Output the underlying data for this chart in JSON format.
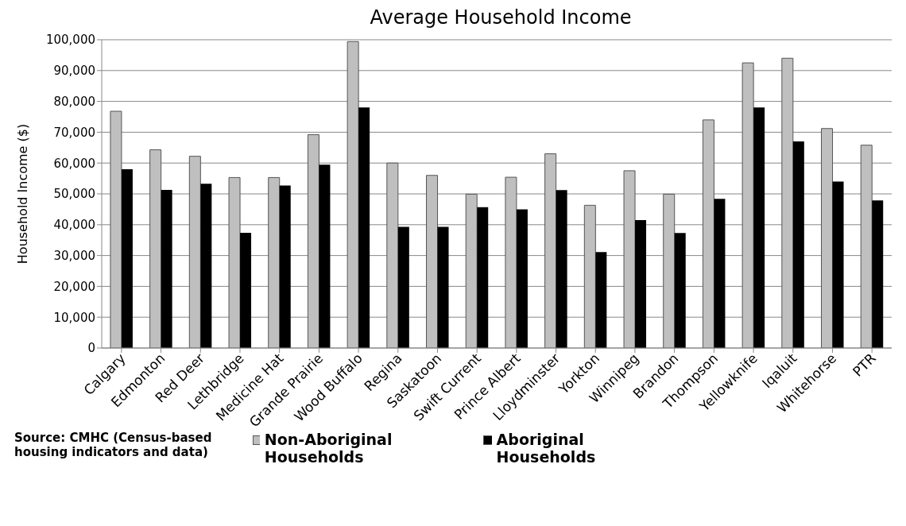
{
  "chart_data": {
    "type": "bar",
    "title": "Average Household Income",
    "ylabel": "Household Income ($)",
    "categories": [
      "Calgary",
      "Edmonton",
      "Red Deer",
      "Lethbridge",
      "Medicine Hat",
      "Grande Prairie",
      "Wood Buffalo",
      "Regina",
      "Saskatoon",
      "Swift Current",
      "Prince Albert",
      "Lloydminster",
      "Yorkton",
      "Winnipeg",
      "Brandon",
      "Thompson",
      "Yellowknife",
      "Iqaluit",
      "Whitehorse",
      "PTR"
    ],
    "series": [
      {
        "name": "Non-Aboriginal Households",
        "color": "#bfbfbf",
        "values": [
          76800,
          64300,
          62200,
          55300,
          55300,
          69200,
          99400,
          60000,
          56000,
          49900,
          55400,
          63000,
          46300,
          57500,
          49900,
          74000,
          92500,
          94000,
          71200,
          65800
        ]
      },
      {
        "name": "Aboriginal Households",
        "color": "#000000",
        "values": [
          58000,
          51300,
          53300,
          37400,
          52700,
          59500,
          78000,
          39300,
          39300,
          45700,
          45000,
          51200,
          31100,
          41500,
          37300,
          48400,
          78000,
          67000,
          54000,
          47900
        ]
      }
    ],
    "ylim": [
      0,
      100000
    ],
    "yticks": [
      {
        "value": 0,
        "label": "0"
      },
      {
        "value": 10000,
        "label": "10,000"
      },
      {
        "value": 20000,
        "label": "20,000"
      },
      {
        "value": 30000,
        "label": "30,000"
      },
      {
        "value": 40000,
        "label": "40,000"
      },
      {
        "value": 50000,
        "label": "50,000"
      },
      {
        "value": 60000,
        "label": "60,000"
      },
      {
        "value": 70000,
        "label": "70,000"
      },
      {
        "value": 80000,
        "label": "80,000"
      },
      {
        "value": 90000,
        "label": "90,000"
      },
      {
        "value": 100000,
        "label": "100,000"
      }
    ],
    "grid": "y",
    "legend": "bottom",
    "annotations": [
      "Source: CMHC (Census-based housing indicators and data)"
    ]
  }
}
